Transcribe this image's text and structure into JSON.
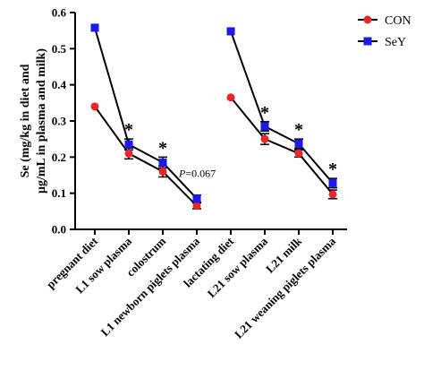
{
  "chart_data": {
    "type": "line",
    "ylabel_line1": "Se (mg/kg in diet and",
    "ylabel_line2": "μg/mL in plasma and milk)",
    "ylim": [
      0,
      0.6
    ],
    "yticks": [
      "0.0",
      "0.1",
      "0.2",
      "0.3",
      "0.4",
      "0.5",
      "0.6"
    ],
    "ytick_values": [
      0,
      0.1,
      0.2,
      0.3,
      0.4,
      0.5,
      0.6
    ],
    "categories": [
      "pregnant diet",
      "L1 sow plasma",
      "colostrum",
      "L1 newborn piglets plasma",
      "lactating diet",
      "L21 sow plasma",
      "L21 milk",
      "L21 weaning piglets plasma"
    ],
    "segments": [
      [
        0,
        1,
        2,
        3
      ],
      [
        4,
        5,
        6,
        7
      ]
    ],
    "series": [
      {
        "name": "CON",
        "marker": "circle",
        "color": "#e8262b",
        "values": [
          0.34,
          0.21,
          0.16,
          0.065,
          0.365,
          0.25,
          0.21,
          0.097
        ],
        "errors": [
          0,
          0.015,
          0.015,
          0.008,
          0,
          0.015,
          0.01,
          0.012
        ]
      },
      {
        "name": "SeY",
        "marker": "square",
        "color": "#1a1aee",
        "values": [
          0.558,
          0.235,
          0.185,
          0.085,
          0.548,
          0.285,
          0.237,
          0.128
        ],
        "errors": [
          0,
          0.015,
          0.015,
          0.01,
          0,
          0.013,
          0.013,
          0.013
        ]
      }
    ],
    "significance": [
      {
        "index": 1,
        "text": "*"
      },
      {
        "index": 2,
        "text": "*"
      },
      {
        "index": 5,
        "text": "*"
      },
      {
        "index": 6,
        "text": "*"
      },
      {
        "index": 7,
        "text": "*"
      }
    ],
    "p_annotation": {
      "index": 3,
      "p_text": "P",
      "value_text": "=0.067"
    },
    "legend_position": "top-right"
  }
}
